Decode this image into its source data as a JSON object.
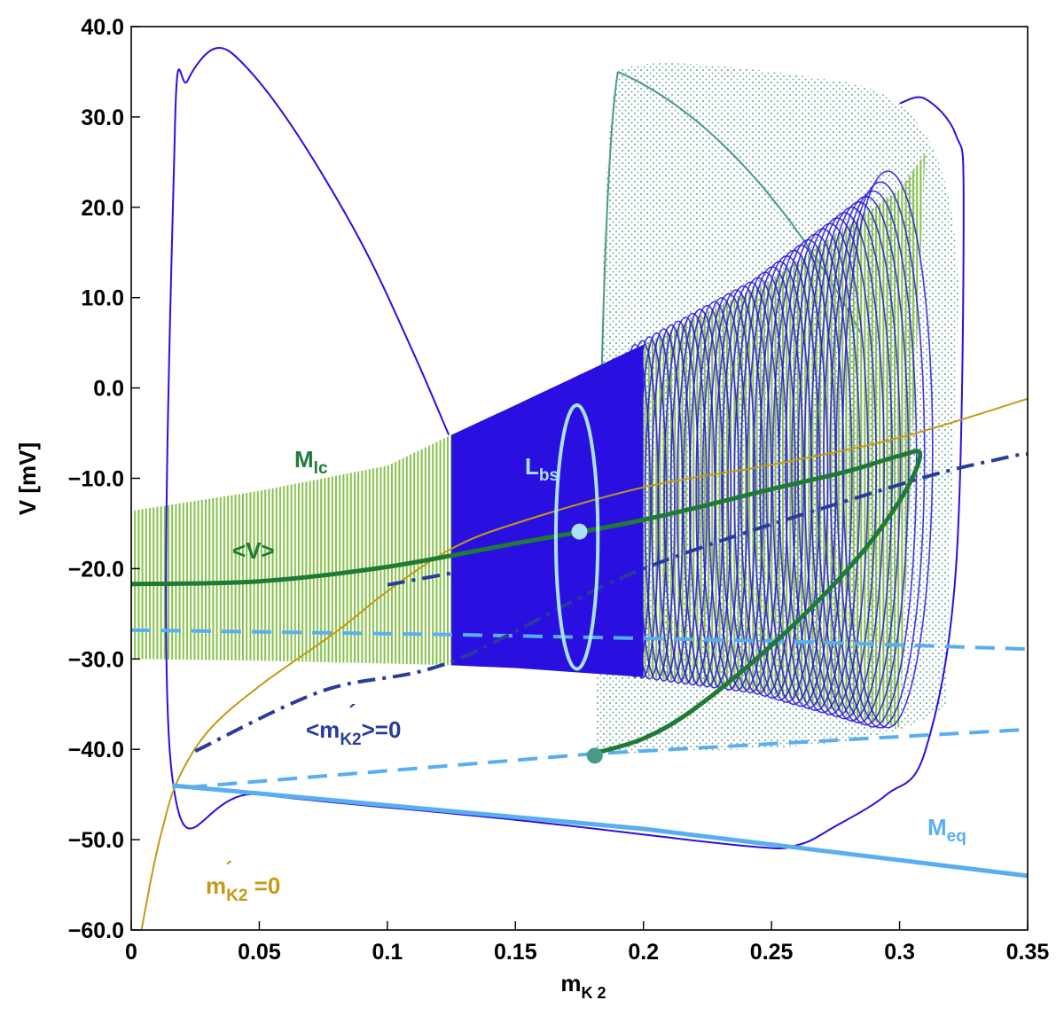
{
  "chart_data": {
    "type": "line",
    "xlabel": {
      "main": "m",
      "sub": "K 2"
    },
    "ylabel": "V [mV]",
    "xlim": [
      0,
      0.35
    ],
    "ylim": [
      -60,
      40
    ],
    "x_ticks": [
      "0",
      "0.05",
      "0.1",
      "0.15",
      "0.2",
      "0.25",
      "0.3",
      "0.35"
    ],
    "y_ticks": [
      "40.0",
      "30.0",
      "20.0",
      "10.0",
      "0.0",
      "−10.0",
      "−20.0",
      "−30.0",
      "−40.0",
      "−50.0",
      "−60.0"
    ],
    "grid": false,
    "colors": {
      "orbit": "#2a10e0",
      "lc_band": "#86c14a",
      "teal_dots": "#4a9a8a",
      "mean_v": "#1f7a35",
      "eq": "#5aaef0",
      "avg_null": "#283c9a",
      "nullcline": "#c29a16",
      "lbs": "#a9e2f6"
    },
    "annotations": [
      {
        "id": "mlc",
        "main": "M",
        "sub": "lc",
        "color": "#1f7a35"
      },
      {
        "id": "lbs",
        "main": "L",
        "sub": "bs",
        "color": "#a9e2f6"
      },
      {
        "id": "meanv",
        "text": "<V>",
        "color": "#1f7a35"
      },
      {
        "id": "avgnull",
        "main": "<m",
        "sub": "K2",
        "tail": ">=0",
        "prime": "´",
        "color": "#283c9a"
      },
      {
        "id": "meq",
        "main": "M",
        "sub": "eq",
        "color": "#5aaef0"
      },
      {
        "id": "nullk2",
        "main": "m",
        "sub": "K2",
        "tail": " =0",
        "prime": "´",
        "color": "#c29a16"
      }
    ],
    "series": [
      {
        "id": "nullcline",
        "style": "solid",
        "points": [
          [
            0.004,
            -60
          ],
          [
            0.008,
            -54
          ],
          [
            0.012,
            -49
          ],
          [
            0.018,
            -43.5
          ],
          [
            0.03,
            -38
          ],
          [
            0.05,
            -33
          ],
          [
            0.08,
            -27
          ],
          [
            0.1,
            -22.5
          ],
          [
            0.125,
            -17.8
          ],
          [
            0.15,
            -15
          ],
          [
            0.2,
            -11
          ],
          [
            0.25,
            -8.5
          ],
          [
            0.3,
            -5.5
          ],
          [
            0.35,
            -1.2
          ]
        ]
      },
      {
        "id": "meq_stable",
        "style": "solid",
        "points": [
          [
            0.016,
            -44
          ],
          [
            0.2,
            -48.8
          ],
          [
            0.35,
            -54
          ]
        ]
      },
      {
        "id": "meq_lower_unstable",
        "style": "dashed",
        "points": [
          [
            0.022,
            -44.2
          ],
          [
            0.18,
            -40.5
          ],
          [
            0.35,
            -37.8
          ]
        ]
      },
      {
        "id": "meq_upper_unstable",
        "style": "dashed",
        "points": [
          [
            0,
            -26.8
          ],
          [
            0.125,
            -27.3
          ],
          [
            0.25,
            -28
          ],
          [
            0.35,
            -28.9
          ]
        ]
      },
      {
        "id": "avg_mk2_null",
        "style": "dashdot",
        "points": [
          [
            0.025,
            -40.2
          ],
          [
            0.075,
            -33.5
          ],
          [
            0.125,
            -30.3
          ],
          [
            0.2,
            -20
          ],
          [
            0.3,
            -10.7
          ],
          [
            0.34,
            -7.8
          ],
          [
            0.35,
            -7.3
          ]
        ]
      },
      {
        "id": "avg_mk2_null_upper",
        "style": "dashdot",
        "points": [
          [
            0.1,
            -21.8
          ],
          [
            0.125,
            -20.5
          ]
        ]
      },
      {
        "id": "mean_v",
        "style": "solid",
        "points": [
          [
            0,
            -21.7
          ],
          [
            0.05,
            -21.4
          ],
          [
            0.1,
            -19.8
          ],
          [
            0.15,
            -17.2
          ],
          [
            0.2,
            -14.6
          ],
          [
            0.25,
            -11.2
          ],
          [
            0.28,
            -9.2
          ],
          [
            0.3,
            -7.5
          ],
          [
            0.308,
            -7.4
          ],
          [
            0.3,
            -12.5
          ],
          [
            0.28,
            -20
          ],
          [
            0.25,
            -28.5
          ],
          [
            0.22,
            -35.5
          ],
          [
            0.2,
            -38.8
          ],
          [
            0.18,
            -40.5
          ]
        ]
      },
      {
        "id": "lc_upper_envelope",
        "style": "band",
        "points": [
          [
            0,
            -13.6
          ],
          [
            0.05,
            -11.4
          ],
          [
            0.1,
            -8.6
          ],
          [
            0.125,
            -5.2
          ],
          [
            0.15,
            -1.9
          ],
          [
            0.2,
            4.8
          ],
          [
            0.25,
            12
          ],
          [
            0.3,
            22
          ],
          [
            0.31,
            26
          ]
        ]
      },
      {
        "id": "lc_lower_envelope",
        "style": "band",
        "points": [
          [
            0,
            -30
          ],
          [
            0.05,
            -30.2
          ],
          [
            0.1,
            -30.5
          ],
          [
            0.125,
            -30.7
          ],
          [
            0.15,
            -31
          ],
          [
            0.2,
            -32
          ],
          [
            0.25,
            -33.8
          ],
          [
            0.3,
            -37.6
          ]
        ]
      },
      {
        "id": "big_orbit",
        "style": "solid",
        "points": [
          [
            0.124,
            -5.2
          ],
          [
            0.11,
            4
          ],
          [
            0.09,
            16
          ],
          [
            0.065,
            28
          ],
          [
            0.045,
            35.5
          ],
          [
            0.033,
            37.6
          ],
          [
            0.022,
            34
          ],
          [
            0.017,
            28
          ],
          [
            0.016,
            -43
          ],
          [
            0.05,
            -45
          ],
          [
            0.15,
            -47.8
          ],
          [
            0.24,
            -50.7
          ],
          [
            0.26,
            -50.6
          ],
          [
            0.275,
            -48.5
          ],
          [
            0.295,
            -45
          ],
          [
            0.31,
            -40.2
          ],
          [
            0.322,
            -20
          ],
          [
            0.325,
            20
          ],
          [
            0.322,
            28
          ],
          [
            0.31,
            32
          ],
          [
            0.3,
            31.5
          ]
        ]
      },
      {
        "id": "torus_spiral",
        "style": "loops",
        "points": [
          [
            0.125,
            -5
          ],
          [
            0.31,
            -37
          ]
        ]
      }
    ],
    "points": [
      {
        "id": "lbs_dot",
        "x": 0.175,
        "y": -15.9,
        "color": "#a9e2f6"
      },
      {
        "id": "saddle_dot",
        "x": 0.181,
        "y": -40.7,
        "color": "#4a9a8a"
      }
    ],
    "lbs_ellipse": {
      "cx": 0.174,
      "cy": -16.5,
      "rx": 0.0082,
      "ry": 14.6
    }
  }
}
